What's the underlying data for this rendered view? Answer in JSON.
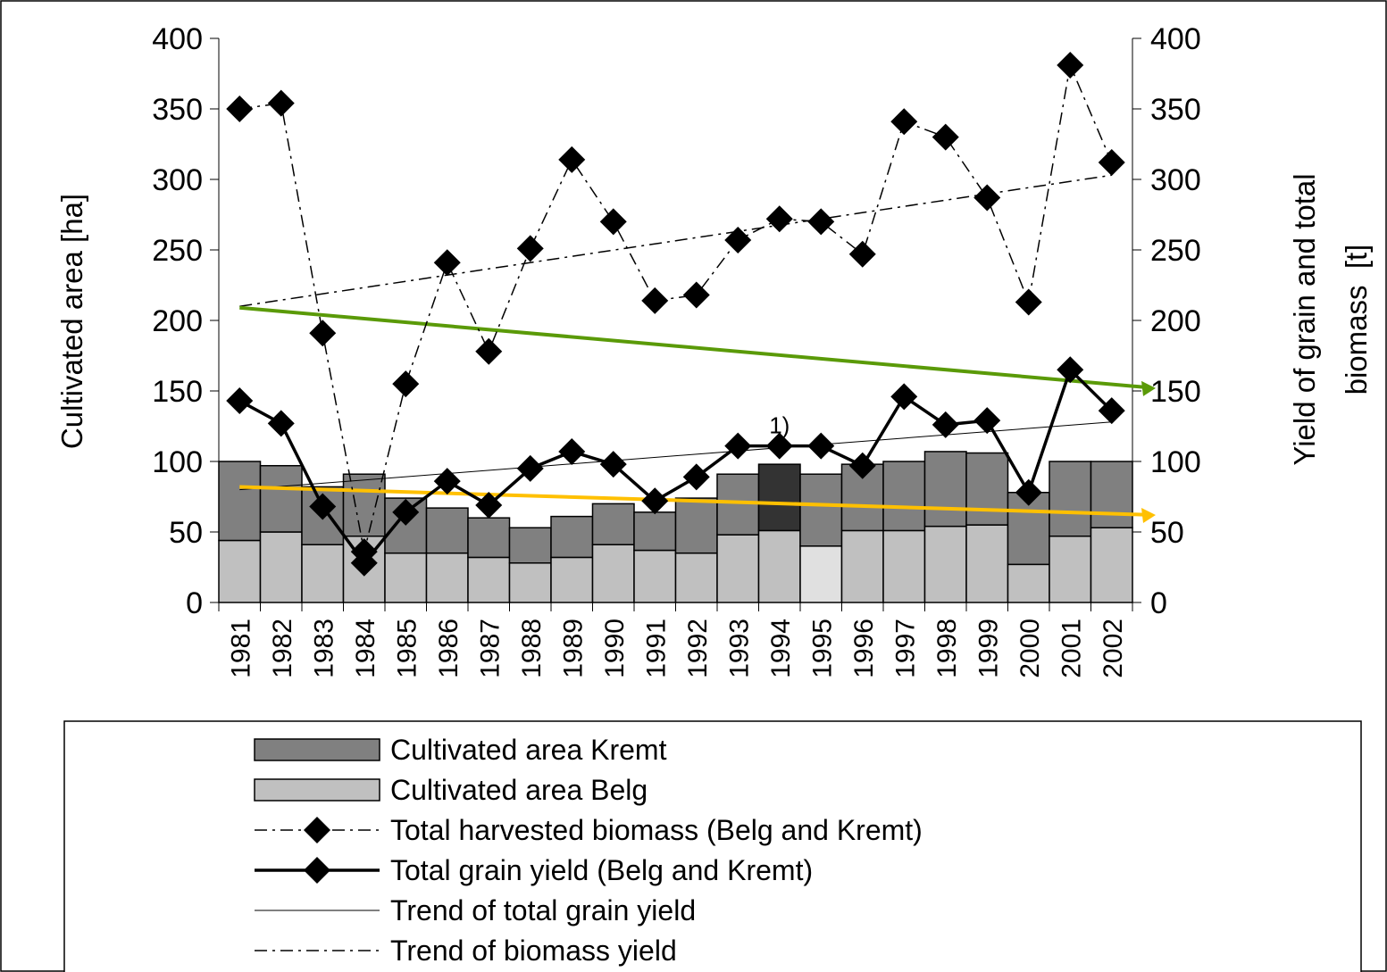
{
  "chart_data": {
    "type": "bar_line",
    "ylabel": "Cultivated area [ha]",
    "y2label": [
      "Yield of grain and total",
      "biomass  [t]"
    ],
    "categories": [
      "1981",
      "1982",
      "1983",
      "1984",
      "1985",
      "1986",
      "1987",
      "1988",
      "1989",
      "1990",
      "1991",
      "1992",
      "1993",
      "1994",
      "1995",
      "1996",
      "1997",
      "1998",
      "1999",
      "2000",
      "2001",
      "2002"
    ],
    "ylim": [
      0,
      400
    ],
    "yticks": [
      0,
      50,
      100,
      150,
      200,
      250,
      300,
      350,
      400
    ],
    "y2lim": [
      0,
      400
    ],
    "y2ticks": [
      0,
      50,
      100,
      150,
      200,
      250,
      300,
      350,
      400
    ],
    "series": [
      {
        "name": "Cultivated area Kremt",
        "kind": "stacked_bar",
        "color": "#808080",
        "colors": [
          "#808080",
          "#808080",
          "#808080",
          "#808080",
          "#808080",
          "#808080",
          "#808080",
          "#808080",
          "#808080",
          "#808080",
          "#808080",
          "#808080",
          "#808080",
          "#333333",
          "#808080",
          "#808080",
          "#808080",
          "#808080",
          "#808080",
          "#808080",
          "#808080",
          "#808080"
        ],
        "values": [
          56,
          47,
          41,
          44,
          39,
          32,
          28,
          25,
          29,
          29,
          27,
          39,
          43,
          47,
          51,
          47,
          49,
          53,
          51,
          51,
          53,
          47
        ]
      },
      {
        "name": "Cultivated area Belg",
        "kind": "stacked_bar",
        "color": "#c0c0c0",
        "colors": [
          "#c0c0c0",
          "#c0c0c0",
          "#c0c0c0",
          "#c0c0c0",
          "#c0c0c0",
          "#c0c0c0",
          "#c0c0c0",
          "#c0c0c0",
          "#c0c0c0",
          "#c0c0c0",
          "#c0c0c0",
          "#c0c0c0",
          "#c0c0c0",
          "#c0c0c0",
          "#e0e0e0",
          "#c0c0c0",
          "#c0c0c0",
          "#c0c0c0",
          "#c0c0c0",
          "#c0c0c0",
          "#c0c0c0",
          "#c0c0c0"
        ],
        "values": [
          44,
          50,
          41,
          47,
          35,
          35,
          32,
          28,
          32,
          41,
          37,
          35,
          48,
          51,
          40,
          51,
          51,
          54,
          55,
          27,
          47,
          53
        ]
      },
      {
        "name": "Total harvested biomass (Belg and Kremt)",
        "kind": "line",
        "dash": "dashdot",
        "axis": "y2",
        "color": "#000000",
        "values": [
          350,
          354,
          191,
          36,
          155,
          241,
          178,
          251,
          314,
          270,
          214,
          218,
          257,
          272,
          270,
          247,
          341,
          330,
          287,
          213,
          381,
          312
        ]
      },
      {
        "name": "Total grain yield (Belg and Kremt)",
        "kind": "line",
        "dash": "solid",
        "axis": "y2",
        "color": "#000000",
        "values": [
          143,
          127,
          68,
          28,
          64,
          86,
          69,
          95,
          107,
          98,
          72,
          89,
          111,
          111,
          111,
          97,
          146,
          126,
          129,
          78,
          165,
          136
        ]
      }
    ],
    "trends": [
      {
        "name": "Trend of total grain yield",
        "dash": "solid",
        "start": 80,
        "end": 128
      },
      {
        "name": "Trend of biomass yield",
        "dash": "dashdot",
        "start": 210,
        "end": 303
      }
    ],
    "arrows": [
      {
        "color": "#5a9a08",
        "start": 209,
        "end": 152
      },
      {
        "color": "#ffc000",
        "start": 82,
        "end": 62
      }
    ],
    "annotations": [
      {
        "text": "1)",
        "x": "1994",
        "y": 120
      }
    ]
  }
}
